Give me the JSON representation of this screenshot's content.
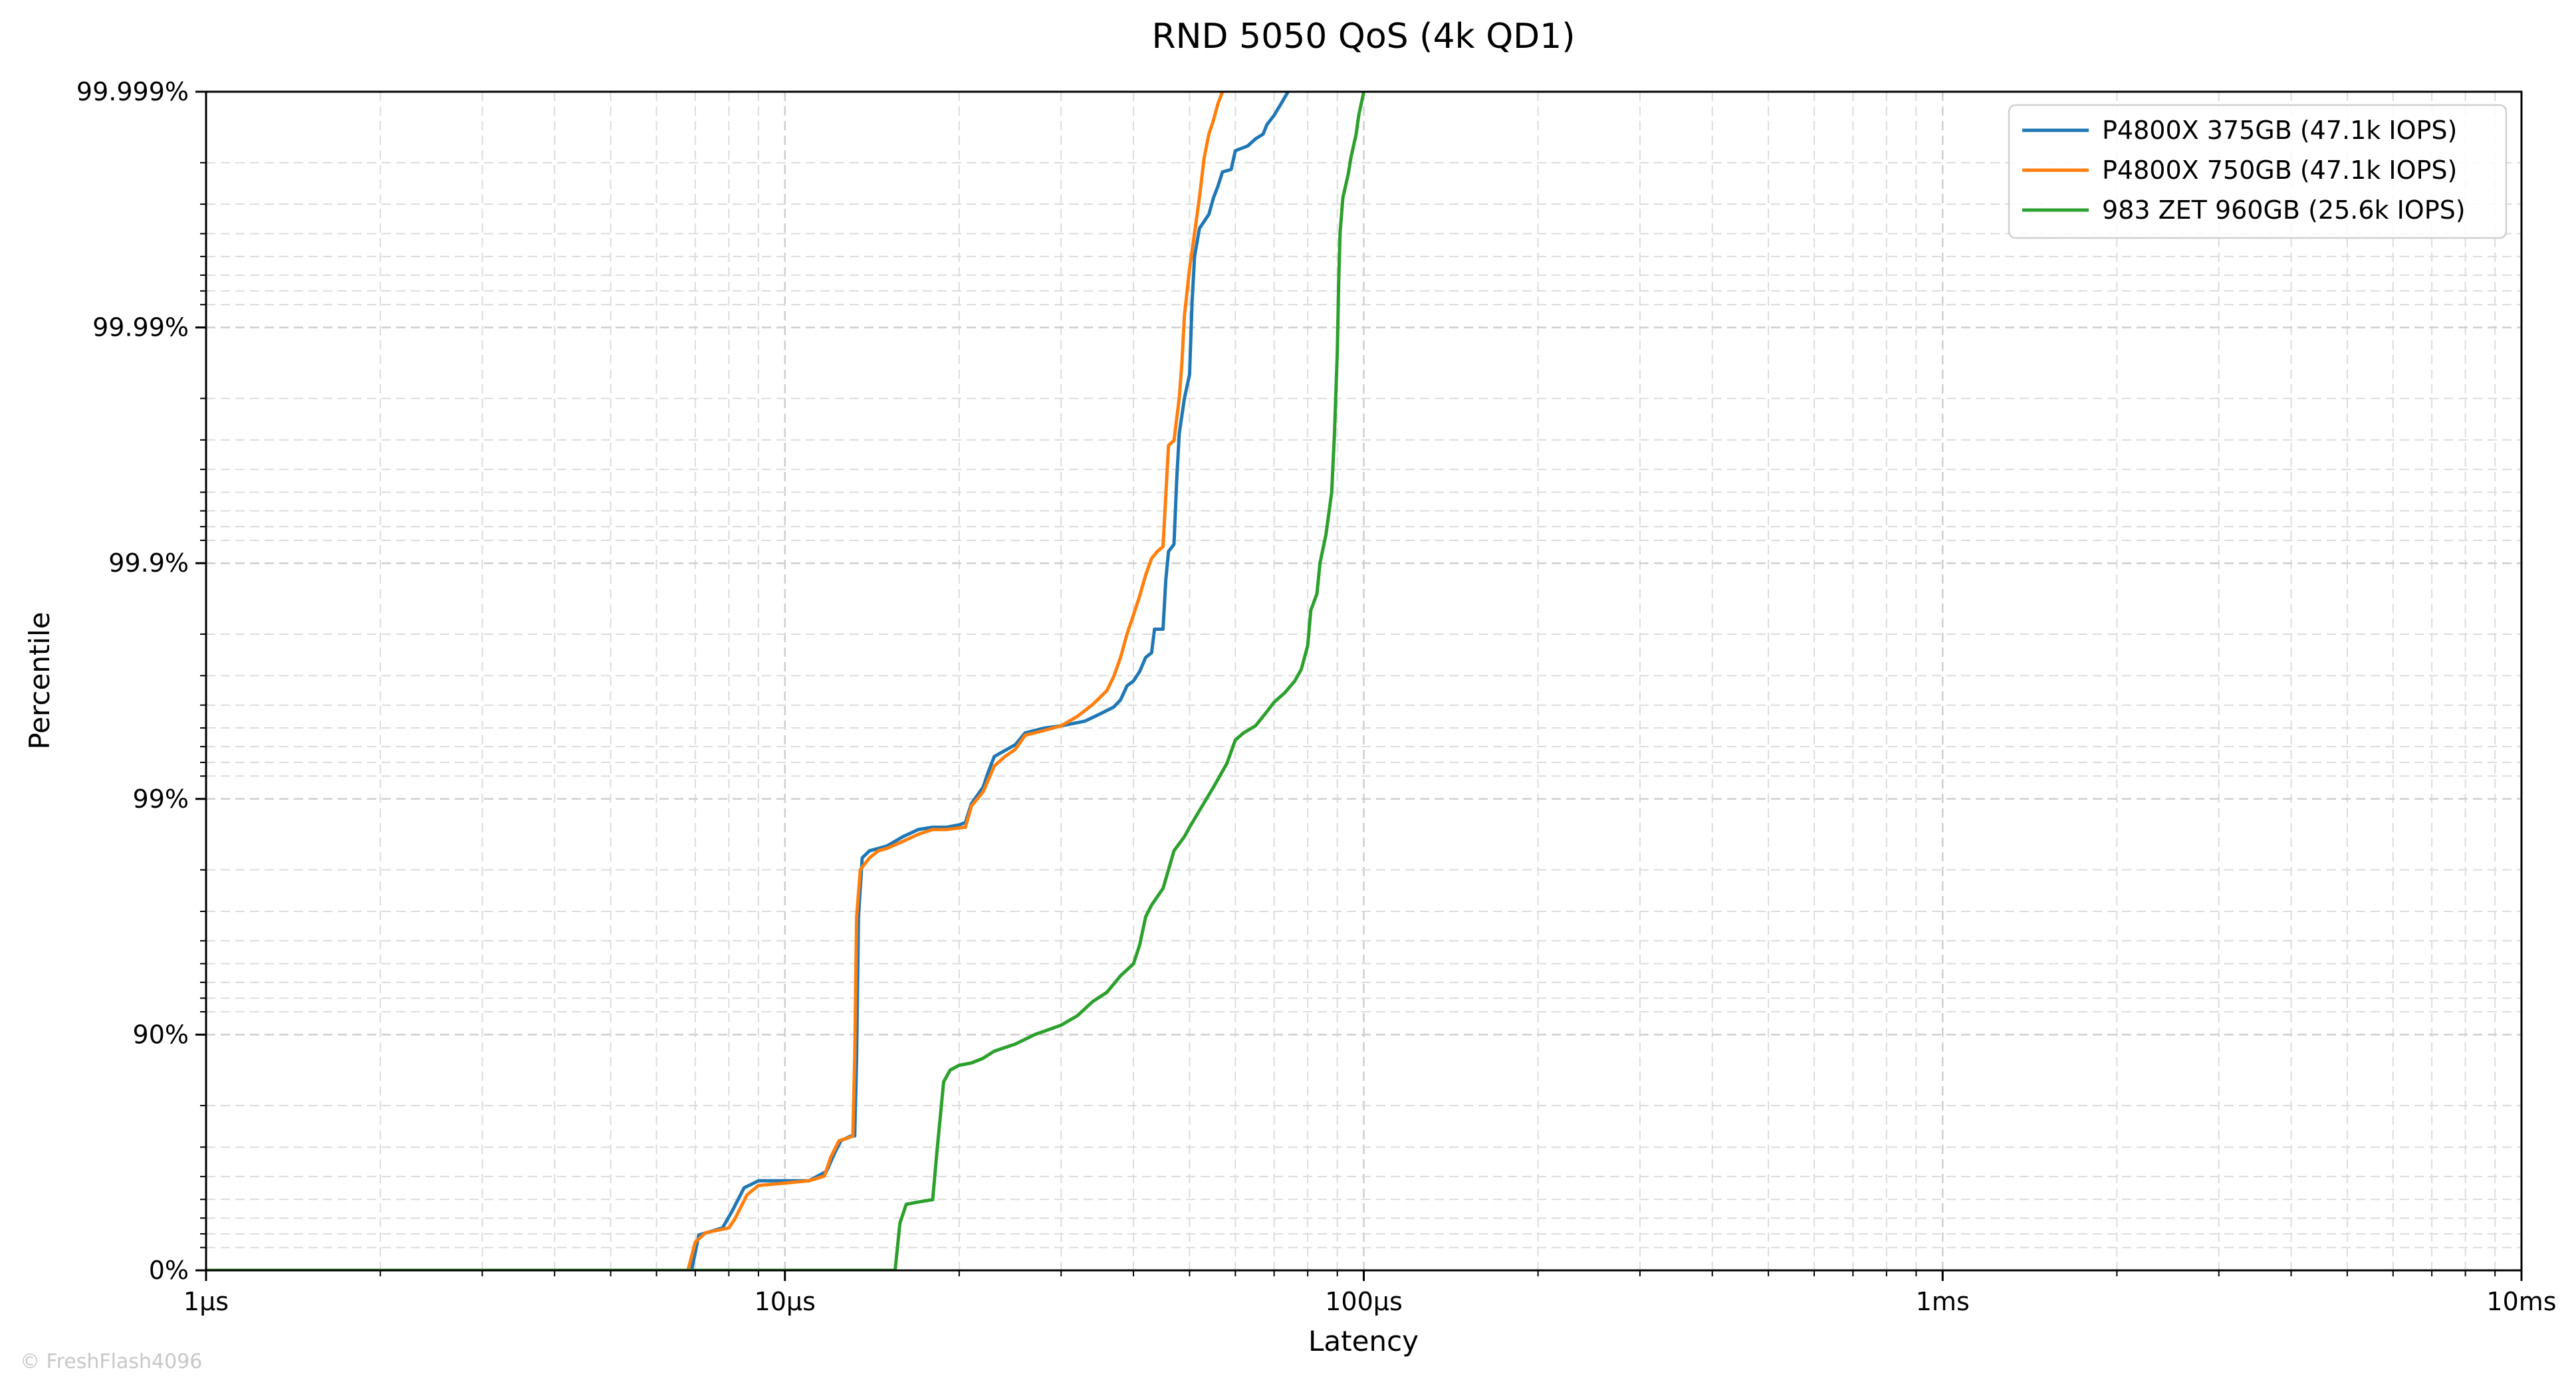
{
  "chart_data": {
    "type": "line",
    "title": "RND 5050 QoS (4k QD1)",
    "xlabel": "Latency",
    "ylabel": "Percentile",
    "x_scale": "log",
    "y_scale": "nines",
    "xlim_us": [
      1,
      10000
    ],
    "ylim_nines": [
      0,
      5
    ],
    "x_ticks": [
      {
        "value_us": 1,
        "label": "1µs"
      },
      {
        "value_us": 10,
        "label": "10µs"
      },
      {
        "value_us": 100,
        "label": "100µs"
      },
      {
        "value_us": 1000,
        "label": "1ms"
      },
      {
        "value_us": 10000,
        "label": "10ms"
      }
    ],
    "y_ticks": [
      {
        "nines": 0,
        "label": "0%"
      },
      {
        "nines": 1,
        "label": "90%"
      },
      {
        "nines": 2,
        "label": "99%"
      },
      {
        "nines": 3,
        "label": "99.9%"
      },
      {
        "nines": 4,
        "label": "99.99%"
      },
      {
        "nines": 5,
        "label": "99.999%"
      }
    ],
    "grid": true,
    "legend_position": "top-right",
    "series": [
      {
        "name": "P4800X 375GB (47.1k IOPS)",
        "color": "#1f77b4",
        "points_us_nines": [
          [
            1,
            0
          ],
          [
            6.9,
            0
          ],
          [
            7.1,
            0.15
          ],
          [
            7.8,
            0.18
          ],
          [
            8.1,
            0.25
          ],
          [
            8.5,
            0.35
          ],
          [
            9,
            0.38
          ],
          [
            10,
            0.38
          ],
          [
            11,
            0.38
          ],
          [
            11.8,
            0.42
          ],
          [
            12.2,
            0.5
          ],
          [
            12.5,
            0.55
          ],
          [
            13,
            0.57
          ],
          [
            13.2,
            0.57
          ],
          [
            13.3,
            0.9
          ],
          [
            13.4,
            1.5
          ],
          [
            13.6,
            1.75
          ],
          [
            14,
            1.78
          ],
          [
            14.5,
            1.79
          ],
          [
            15,
            1.8
          ],
          [
            16,
            1.84
          ],
          [
            17,
            1.87
          ],
          [
            18,
            1.88
          ],
          [
            19,
            1.88
          ],
          [
            20,
            1.89
          ],
          [
            20.5,
            1.9
          ],
          [
            21,
            1.98
          ],
          [
            22,
            2.05
          ],
          [
            22.5,
            2.12
          ],
          [
            23,
            2.18
          ],
          [
            25,
            2.23
          ],
          [
            26,
            2.28
          ],
          [
            28,
            2.3
          ],
          [
            30,
            2.31
          ],
          [
            33,
            2.33
          ],
          [
            35,
            2.36
          ],
          [
            37,
            2.39
          ],
          [
            38,
            2.42
          ],
          [
            39,
            2.48
          ],
          [
            40,
            2.5
          ],
          [
            41,
            2.54
          ],
          [
            42,
            2.6
          ],
          [
            43,
            2.62
          ],
          [
            43.5,
            2.72
          ],
          [
            45,
            2.72
          ],
          [
            45.5,
            2.93
          ],
          [
            46,
            3.05
          ],
          [
            47,
            3.08
          ],
          [
            47.5,
            3.35
          ],
          [
            48,
            3.55
          ],
          [
            49,
            3.7
          ],
          [
            50,
            3.8
          ],
          [
            50.5,
            4.1
          ],
          [
            51,
            4.3
          ],
          [
            52,
            4.42
          ],
          [
            53,
            4.45
          ],
          [
            54,
            4.48
          ],
          [
            55,
            4.55
          ],
          [
            56,
            4.6
          ],
          [
            57,
            4.66
          ],
          [
            59,
            4.67
          ],
          [
            60,
            4.75
          ],
          [
            63,
            4.77
          ],
          [
            65,
            4.8
          ],
          [
            67,
            4.82
          ],
          [
            68,
            4.86
          ],
          [
            70,
            4.9
          ],
          [
            72,
            4.95
          ],
          [
            74,
            5
          ]
        ]
      },
      {
        "name": "P4800X 750GB (47.1k IOPS)",
        "color": "#ff7f0e",
        "points_us_nines": [
          [
            1,
            0
          ],
          [
            6.8,
            0
          ],
          [
            7,
            0.12
          ],
          [
            7.3,
            0.16
          ],
          [
            8,
            0.18
          ],
          [
            8.2,
            0.22
          ],
          [
            8.6,
            0.32
          ],
          [
            9,
            0.36
          ],
          [
            10,
            0.37
          ],
          [
            11,
            0.38
          ],
          [
            11.7,
            0.4
          ],
          [
            12,
            0.48
          ],
          [
            12.4,
            0.55
          ],
          [
            12.8,
            0.56
          ],
          [
            13.1,
            0.57
          ],
          [
            13.2,
            0.9
          ],
          [
            13.3,
            1.5
          ],
          [
            13.5,
            1.7
          ],
          [
            14,
            1.75
          ],
          [
            14.5,
            1.78
          ],
          [
            15,
            1.79
          ],
          [
            16,
            1.82
          ],
          [
            17,
            1.85
          ],
          [
            18,
            1.87
          ],
          [
            19,
            1.87
          ],
          [
            20.5,
            1.88
          ],
          [
            21,
            1.97
          ],
          [
            22,
            2.03
          ],
          [
            23,
            2.14
          ],
          [
            24,
            2.18
          ],
          [
            25,
            2.21
          ],
          [
            26,
            2.27
          ],
          [
            28,
            2.29
          ],
          [
            30,
            2.31
          ],
          [
            32,
            2.35
          ],
          [
            34,
            2.4
          ],
          [
            35,
            2.43
          ],
          [
            36,
            2.46
          ],
          [
            37,
            2.52
          ],
          [
            38,
            2.6
          ],
          [
            39,
            2.7
          ],
          [
            40,
            2.78
          ],
          [
            41,
            2.86
          ],
          [
            42,
            2.95
          ],
          [
            43,
            3.02
          ],
          [
            44,
            3.05
          ],
          [
            45,
            3.07
          ],
          [
            46,
            3.5
          ],
          [
            47,
            3.52
          ],
          [
            48,
            3.7
          ],
          [
            48.5,
            3.85
          ],
          [
            49,
            4.05
          ],
          [
            50,
            4.25
          ],
          [
            51,
            4.4
          ],
          [
            52,
            4.55
          ],
          [
            53,
            4.72
          ],
          [
            54,
            4.82
          ],
          [
            55,
            4.88
          ],
          [
            56,
            4.95
          ],
          [
            57,
            5
          ]
        ]
      },
      {
        "name": "983 ZET 960GB (25.6k IOPS)",
        "color": "#2ca02c",
        "points_us_nines": [
          [
            1,
            0
          ],
          [
            15.5,
            0
          ],
          [
            15.8,
            0.2
          ],
          [
            16.2,
            0.28
          ],
          [
            17,
            0.29
          ],
          [
            18,
            0.3
          ],
          [
            18.3,
            0.5
          ],
          [
            18.8,
            0.8
          ],
          [
            19.3,
            0.85
          ],
          [
            20,
            0.87
          ],
          [
            21,
            0.88
          ],
          [
            22,
            0.9
          ],
          [
            23,
            0.93
          ],
          [
            25,
            0.96
          ],
          [
            27,
            1.0
          ],
          [
            30,
            1.04
          ],
          [
            32,
            1.08
          ],
          [
            34,
            1.14
          ],
          [
            36,
            1.18
          ],
          [
            38,
            1.25
          ],
          [
            40,
            1.3
          ],
          [
            41,
            1.38
          ],
          [
            42,
            1.5
          ],
          [
            43,
            1.55
          ],
          [
            45,
            1.62
          ],
          [
            46,
            1.7
          ],
          [
            47,
            1.78
          ],
          [
            49,
            1.84
          ],
          [
            50,
            1.88
          ],
          [
            52,
            1.95
          ],
          [
            55,
            2.05
          ],
          [
            58,
            2.15
          ],
          [
            60,
            2.25
          ],
          [
            62,
            2.28
          ],
          [
            65,
            2.31
          ],
          [
            68,
            2.37
          ],
          [
            70,
            2.41
          ],
          [
            73,
            2.45
          ],
          [
            76,
            2.5
          ],
          [
            78,
            2.55
          ],
          [
            80,
            2.65
          ],
          [
            81,
            2.8
          ],
          [
            83,
            2.87
          ],
          [
            84,
            3.0
          ],
          [
            86,
            3.12
          ],
          [
            88,
            3.3
          ],
          [
            89,
            3.55
          ],
          [
            90,
            3.9
          ],
          [
            90.5,
            4.2
          ],
          [
            91,
            4.4
          ],
          [
            92,
            4.55
          ],
          [
            94,
            4.65
          ],
          [
            95,
            4.72
          ],
          [
            97,
            4.82
          ],
          [
            98,
            4.9
          ],
          [
            100,
            5
          ]
        ]
      }
    ]
  },
  "watermark": "© FreshFlash4096"
}
